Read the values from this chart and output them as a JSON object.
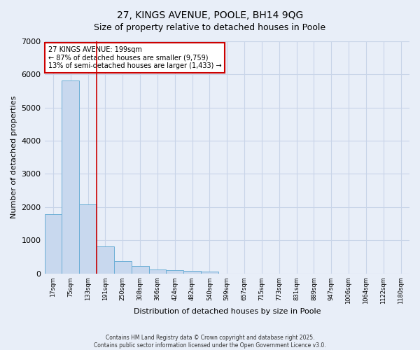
{
  "title": "27, KINGS AVENUE, POOLE, BH14 9QG",
  "subtitle": "Size of property relative to detached houses in Poole",
  "xlabel": "Distribution of detached houses by size in Poole",
  "ylabel": "Number of detached properties",
  "categories": [
    "17sqm",
    "75sqm",
    "133sqm",
    "191sqm",
    "250sqm",
    "308sqm",
    "366sqm",
    "424sqm",
    "482sqm",
    "540sqm",
    "599sqm",
    "657sqm",
    "715sqm",
    "773sqm",
    "831sqm",
    "889sqm",
    "947sqm",
    "1006sqm",
    "1064sqm",
    "1122sqm",
    "1180sqm"
  ],
  "values": [
    1780,
    5820,
    2080,
    820,
    370,
    220,
    120,
    90,
    70,
    55,
    0,
    0,
    0,
    0,
    0,
    0,
    0,
    0,
    0,
    0,
    0
  ],
  "bar_color": "#c8d8ee",
  "bar_edge_color": "#6baed6",
  "grid_color": "#c8d4e8",
  "vline_x_idx": 3,
  "vline_color": "#cc0000",
  "annotation_text": "27 KINGS AVENUE: 199sqm\n← 87% of detached houses are smaller (9,759)\n13% of semi-detached houses are larger (1,433) →",
  "annotation_box_color": "#ffffff",
  "annotation_box_edge": "#cc0000",
  "ylim": [
    0,
    7000
  ],
  "yticks": [
    0,
    1000,
    2000,
    3000,
    4000,
    5000,
    6000,
    7000
  ],
  "footer": "Contains HM Land Registry data © Crown copyright and database right 2025.\nContains public sector information licensed under the Open Government Licence v3.0.",
  "bg_color": "#e8eef8",
  "plot_bg_color": "#e8eef8",
  "title_fontsize": 10,
  "subtitle_fontsize": 9
}
